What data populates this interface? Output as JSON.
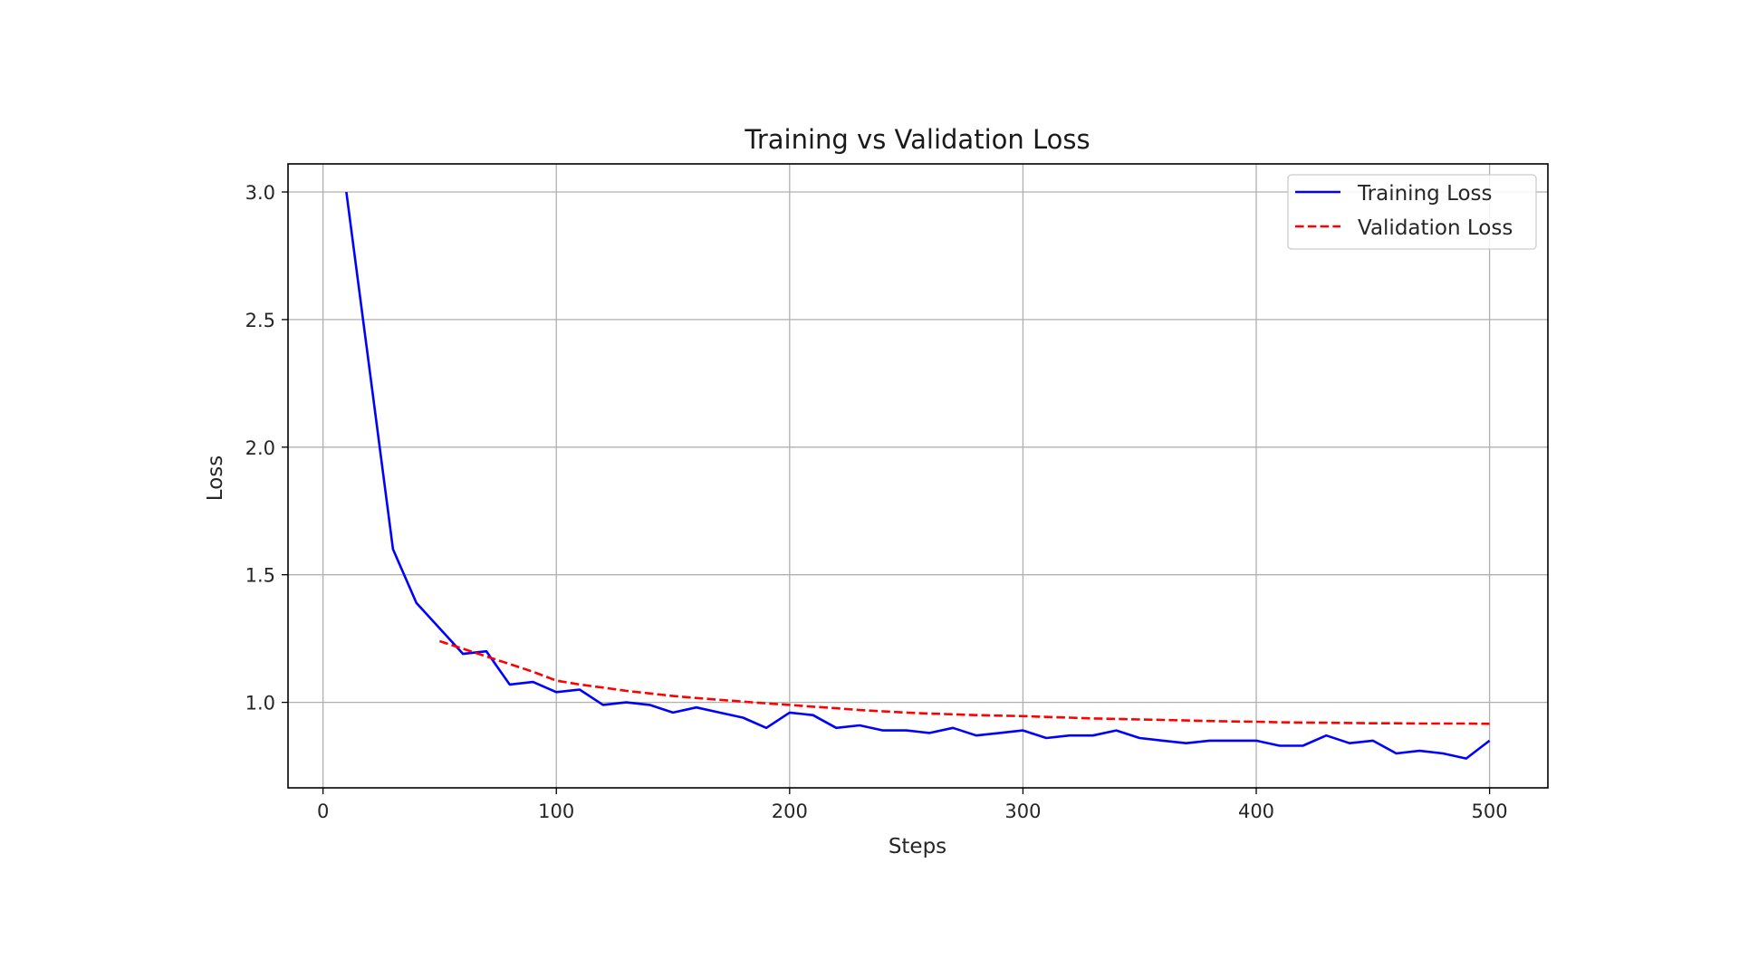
{
  "chart_data": {
    "type": "line",
    "title": "Training vs Validation Loss",
    "xlabel": "Steps",
    "ylabel": "Loss",
    "xlim": [
      -15,
      525
    ],
    "ylim": [
      0.665,
      3.11
    ],
    "xticks": [
      0,
      100,
      200,
      300,
      400,
      500
    ],
    "yticks": [
      1.0,
      1.5,
      2.0,
      2.5,
      3.0
    ],
    "grid": true,
    "legend_position": "top-right",
    "series": [
      {
        "name": "Training Loss",
        "color": "#0000ff",
        "style": "solid",
        "x": [
          10,
          20,
          30,
          40,
          50,
          60,
          70,
          80,
          90,
          100,
          110,
          120,
          130,
          140,
          150,
          160,
          170,
          180,
          190,
          200,
          210,
          220,
          230,
          240,
          250,
          260,
          270,
          280,
          290,
          300,
          310,
          320,
          330,
          340,
          350,
          360,
          370,
          380,
          390,
          400,
          410,
          420,
          430,
          440,
          450,
          460,
          470,
          480,
          490,
          500
        ],
        "y": [
          3.0,
          2.3,
          1.6,
          1.39,
          1.29,
          1.19,
          1.2,
          1.07,
          1.08,
          1.04,
          1.05,
          0.99,
          1.0,
          0.99,
          0.96,
          0.98,
          0.96,
          0.94,
          0.9,
          0.96,
          0.95,
          0.9,
          0.91,
          0.89,
          0.89,
          0.88,
          0.9,
          0.87,
          0.88,
          0.89,
          0.86,
          0.87,
          0.87,
          0.89,
          0.86,
          0.85,
          0.84,
          0.85,
          0.85,
          0.85,
          0.83,
          0.83,
          0.87,
          0.84,
          0.85,
          0.8,
          0.81,
          0.8,
          0.78,
          0.85
        ]
      },
      {
        "name": "Validation Loss",
        "color": "#ff0000",
        "style": "dashed",
        "x": [
          50,
          60,
          70,
          80,
          90,
          100,
          110,
          120,
          130,
          140,
          150,
          160,
          170,
          180,
          190,
          200,
          210,
          220,
          230,
          240,
          250,
          260,
          270,
          280,
          290,
          300,
          310,
          320,
          330,
          340,
          350,
          360,
          370,
          380,
          390,
          400,
          410,
          420,
          430,
          440,
          450,
          460,
          470,
          480,
          490,
          500
        ],
        "y": [
          1.24,
          1.21,
          1.18,
          1.15,
          1.12,
          1.085,
          1.07,
          1.058,
          1.045,
          1.035,
          1.025,
          1.017,
          1.01,
          1.003,
          0.996,
          0.99,
          0.983,
          0.977,
          0.97,
          0.965,
          0.96,
          0.956,
          0.953,
          0.95,
          0.948,
          0.946,
          0.943,
          0.94,
          0.937,
          0.935,
          0.933,
          0.931,
          0.929,
          0.927,
          0.925,
          0.924,
          0.922,
          0.921,
          0.92,
          0.919,
          0.918,
          0.918,
          0.917,
          0.917,
          0.917,
          0.916
        ]
      }
    ]
  }
}
